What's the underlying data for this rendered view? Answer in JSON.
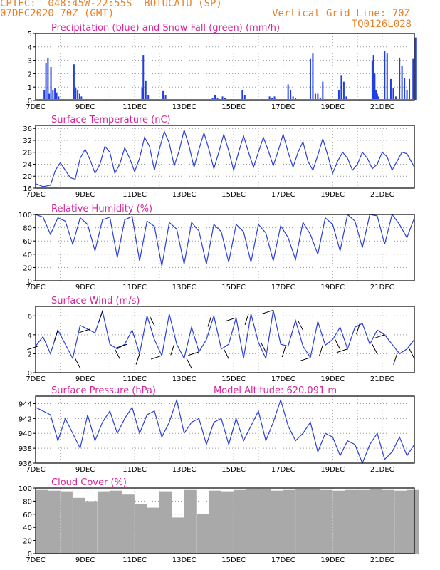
{
  "header": {
    "line1": "CPTEC:  048:45W-22:55S  BOTUCATU (SP)",
    "line2_left": "07DEC2020 70Z (GMT)",
    "line2_right": "Vertical Grid Line: 70Z",
    "line3_right": "TQ0126L028"
  },
  "colors": {
    "header": "#e8822a",
    "title": "#d6249a",
    "line": "#2a3fd8",
    "precip": "#1f3ee0",
    "snow": "#1fae3a",
    "cloud": "#a9a9a9",
    "grid": "#999999"
  },
  "x_labels": [
    "7DEC",
    "9DEC",
    "11DEC",
    "13DEC",
    "15DEC",
    "17DEC",
    "19DEC",
    "21DEC"
  ],
  "chart_data": [
    {
      "type": "bar",
      "title": "Precipitation (blue) and Snow Fall (green) (mm/h)",
      "ylim": [
        0,
        5
      ],
      "yticks": [
        0,
        1,
        2,
        3,
        4,
        5
      ],
      "series": [
        {
          "name": "Precipitation (blue)",
          "x": [
            0.35,
            0.42,
            0.5,
            0.55,
            0.62,
            0.7,
            0.78,
            0.85,
            0.93,
            1.55,
            1.62,
            1.7,
            1.78,
            1.85,
            4.3,
            4.35,
            4.45,
            4.55,
            5.15,
            5.25,
            7.15,
            7.25,
            7.35,
            7.55,
            7.65,
            8.35,
            8.45,
            9.45,
            9.55,
            9.65,
            10.2,
            10.3,
            10.4,
            10.5,
            11.1,
            11.2,
            11.3,
            11.4,
            11.5,
            11.6,
            12.25,
            12.35,
            12.45,
            12.55,
            13.6,
            13.65,
            13.7,
            13.75,
            13.8,
            13.85,
            14.1,
            14.2,
            14.35,
            14.45,
            14.55,
            14.7,
            14.8,
            14.9,
            15.0,
            15.1,
            15.25,
            15.35
          ],
          "values": [
            0.8,
            2.8,
            3.2,
            0.5,
            2.5,
            0.8,
            0.9,
            0.6,
            0.3,
            2.7,
            0.9,
            0.8,
            0.5,
            0.3,
            0.9,
            3.4,
            1.5,
            0.4,
            0.7,
            0.4,
            0.2,
            0.4,
            0.2,
            0.3,
            0.2,
            0.8,
            0.4,
            0.3,
            0.2,
            0.3,
            1.2,
            0.8,
            0.3,
            0.2,
            3.1,
            3.5,
            0.5,
            0.5,
            0.2,
            1.4,
            0.8,
            1.9,
            1.4,
            0.3,
            3.0,
            3.4,
            2.0,
            0.8,
            0.5,
            0.3,
            3.7,
            3.5,
            1.6,
            0.9,
            0.3,
            3.2,
            2.6,
            1.7,
            0.8,
            1.6,
            3.1,
            4.7
          ]
        },
        {
          "name": "Snow Fall (green)",
          "x": [
            0,
            15.3
          ],
          "values": [
            0,
            0
          ]
        }
      ]
    },
    {
      "type": "line",
      "title": "Surface Temperature (nC)",
      "ylim": [
        16,
        37
      ],
      "yticks": [
        16,
        20,
        24,
        28,
        32,
        36
      ],
      "series": [
        {
          "name": "",
          "x": [
            0,
            0.3,
            0.6,
            0.8,
            1.0,
            1.2,
            1.4,
            1.6,
            1.8,
            2.0,
            2.2,
            2.4,
            2.6,
            2.8,
            3.0,
            3.2,
            3.4,
            3.6,
            3.8,
            4.0,
            4.2,
            4.4,
            4.6,
            4.8,
            5.0,
            5.2,
            5.4,
            5.6,
            5.8,
            6.0,
            6.2,
            6.4,
            6.6,
            6.8,
            7.0,
            7.2,
            7.4,
            7.6,
            7.8,
            8.0,
            8.2,
            8.4,
            8.6,
            8.8,
            9.0,
            9.2,
            9.4,
            9.6,
            9.8,
            10.0,
            10.2,
            10.4,
            10.6,
            10.8,
            11.0,
            11.2,
            11.4,
            11.6,
            11.8,
            12.0,
            12.2,
            12.4,
            12.6,
            12.8,
            13.0,
            13.2,
            13.4,
            13.6,
            13.8,
            14.0,
            14.2,
            14.4,
            14.6,
            14.8,
            15.0,
            15.3
          ],
          "values": [
            17.5,
            16.5,
            17.0,
            22.0,
            24.5,
            22.0,
            19.5,
            19.0,
            26.0,
            29.0,
            25.5,
            21.0,
            24.0,
            30.0,
            28.0,
            21.0,
            24.0,
            29.5,
            26.0,
            21.5,
            26.0,
            33.0,
            30.0,
            22.0,
            29.0,
            35.0,
            31.0,
            23.5,
            28.5,
            35.5,
            30.0,
            23.0,
            29.0,
            34.5,
            29.0,
            22.5,
            28.0,
            34.0,
            28.5,
            22.0,
            28.0,
            33.5,
            28.0,
            23.0,
            28.0,
            33.0,
            28.5,
            23.5,
            28.5,
            34.0,
            28.0,
            23.0,
            28.0,
            31.5,
            25.0,
            22.0,
            27.0,
            32.5,
            27.0,
            21.0,
            25.0,
            28.0,
            26.0,
            22.0,
            24.0,
            28.0,
            26.0,
            22.5,
            24.0,
            28.0,
            26.5,
            22.0,
            25.0,
            28.0,
            27.5,
            23.0
          ]
        }
      ]
    },
    {
      "type": "line",
      "title": "Relative Humidity (%)",
      "ylim": [
        0,
        100
      ],
      "yticks": [
        0,
        20,
        40,
        60,
        80,
        100
      ],
      "series": [
        {
          "name": "",
          "x": [
            0,
            0.3,
            0.6,
            0.9,
            1.2,
            1.5,
            1.8,
            2.1,
            2.4,
            2.7,
            3.0,
            3.3,
            3.6,
            3.9,
            4.2,
            4.5,
            4.8,
            5.1,
            5.4,
            5.7,
            6.0,
            6.3,
            6.6,
            6.9,
            7.2,
            7.5,
            7.8,
            8.1,
            8.4,
            8.7,
            9.0,
            9.3,
            9.6,
            9.9,
            10.2,
            10.5,
            10.8,
            11.1,
            11.4,
            11.7,
            12.0,
            12.3,
            12.6,
            12.9,
            13.2,
            13.5,
            13.8,
            14.1,
            14.4,
            14.7,
            15.0,
            15.3
          ],
          "values": [
            100,
            96,
            70,
            95,
            90,
            55,
            95,
            85,
            45,
            92,
            96,
            35,
            92,
            97,
            30,
            90,
            82,
            22,
            88,
            78,
            25,
            88,
            75,
            25,
            85,
            74,
            28,
            85,
            74,
            28,
            85,
            72,
            30,
            83,
            65,
            32,
            88,
            70,
            40,
            95,
            85,
            45,
            100,
            90,
            50,
            100,
            98,
            55,
            100,
            85,
            65,
            95
          ]
        }
      ]
    },
    {
      "type": "line",
      "title": "Surface Wind (m/s)",
      "ylim": [
        0,
        7
      ],
      "yticks": [
        0,
        2,
        4,
        6
      ],
      "series": [
        {
          "name": "",
          "x": [
            0,
            0.3,
            0.6,
            0.9,
            1.2,
            1.5,
            1.8,
            2.1,
            2.4,
            2.7,
            3.0,
            3.3,
            3.6,
            3.9,
            4.2,
            4.5,
            4.8,
            5.1,
            5.4,
            5.7,
            6.0,
            6.3,
            6.6,
            6.9,
            7.2,
            7.5,
            7.8,
            8.1,
            8.4,
            8.7,
            9.0,
            9.3,
            9.6,
            9.9,
            10.2,
            10.5,
            10.8,
            11.1,
            11.4,
            11.7,
            12.0,
            12.3,
            12.6,
            12.9,
            13.2,
            13.5,
            13.8,
            14.1,
            14.4,
            14.7,
            15.0,
            15.3
          ],
          "values": [
            2.8,
            3.8,
            2.0,
            4.5,
            3.0,
            1.5,
            5.0,
            4.6,
            4.2,
            6.5,
            3.0,
            2.5,
            3.0,
            4.5,
            2.0,
            6.0,
            3.5,
            1.8,
            6.2,
            3.0,
            1.5,
            4.8,
            2.2,
            3.5,
            6.0,
            2.5,
            3.0,
            5.8,
            1.5,
            6.2,
            3.2,
            1.5,
            6.6,
            3.0,
            2.8,
            5.5,
            2.8,
            1.6,
            5.4,
            2.9,
            3.5,
            4.8,
            2.5,
            4.8,
            5.2,
            3.0,
            4.5,
            4.0,
            3.0,
            2.0,
            2.5,
            3.5
          ]
        }
      ],
      "arrows": {
        "x": [
          0.1,
          0.9,
          1.6,
          2.2,
          2.7,
          3.2,
          3.7,
          4.2,
          4.6,
          5.1,
          5.6,
          6.1,
          6.6,
          7.1,
          7.6,
          8.1,
          8.6,
          9.1,
          9.6,
          10.1,
          10.6,
          11.1,
          11.6,
          12.1,
          12.6,
          13.1,
          13.6,
          14.1,
          14.6,
          15.1
        ]
      }
    },
    {
      "type": "line",
      "title": "Surface Pressure (hPa)",
      "annotation": "Model Altitude: 620.091 m",
      "ylim": [
        936,
        945
      ],
      "yticks": [
        936,
        938,
        940,
        942,
        944
      ],
      "series": [
        {
          "name": "",
          "x": [
            0,
            0.3,
            0.6,
            0.9,
            1.2,
            1.5,
            1.8,
            2.1,
            2.4,
            2.7,
            3.0,
            3.3,
            3.6,
            3.9,
            4.2,
            4.5,
            4.8,
            5.1,
            5.4,
            5.7,
            6.0,
            6.3,
            6.6,
            6.9,
            7.2,
            7.5,
            7.8,
            8.1,
            8.4,
            8.7,
            9.0,
            9.3,
            9.6,
            9.9,
            10.2,
            10.5,
            10.8,
            11.1,
            11.4,
            11.7,
            12.0,
            12.3,
            12.6,
            12.9,
            13.2,
            13.5,
            13.8,
            14.1,
            14.4,
            14.7,
            15.0,
            15.3
          ],
          "values": [
            943.5,
            943.0,
            942.5,
            939.0,
            942.0,
            940.0,
            938.0,
            942.5,
            939.0,
            941.5,
            943.0,
            940.0,
            942.0,
            943.5,
            940.0,
            942.5,
            943.0,
            939.5,
            941.5,
            944.5,
            940.0,
            941.5,
            942.0,
            938.5,
            941.5,
            942.0,
            938.5,
            942.0,
            939.0,
            941.0,
            943.0,
            939.0,
            941.5,
            944.5,
            941.0,
            939.0,
            940.0,
            941.5,
            937.5,
            940.0,
            939.5,
            937.0,
            939.0,
            938.5,
            936.0,
            938.5,
            940.0,
            936.5,
            937.5,
            939.5,
            937.0,
            938.5
          ]
        }
      ]
    },
    {
      "type": "bar",
      "title": "Cloud Cover (%)",
      "ylim": [
        0,
        100
      ],
      "yticks": [
        0,
        20,
        40,
        60,
        80,
        100
      ],
      "series": [
        {
          "name": "",
          "x": [
            0,
            0.5,
            1.0,
            1.5,
            2.0,
            2.5,
            3.0,
            3.5,
            4.0,
            4.5,
            5.0,
            5.5,
            6.0,
            6.5,
            7.0,
            7.5,
            8.0,
            8.5,
            9.0,
            9.5,
            10.0,
            10.5,
            11.0,
            11.5,
            12.0,
            12.5,
            13.0,
            13.5,
            14.0,
            14.5,
            15.0
          ],
          "values": [
            97,
            96,
            95,
            85,
            80,
            95,
            96,
            90,
            75,
            70,
            95,
            55,
            97,
            60,
            96,
            95,
            97,
            98,
            98,
            96,
            97,
            98,
            98,
            97,
            96,
            97,
            97,
            98,
            97,
            96,
            97
          ]
        }
      ]
    }
  ]
}
